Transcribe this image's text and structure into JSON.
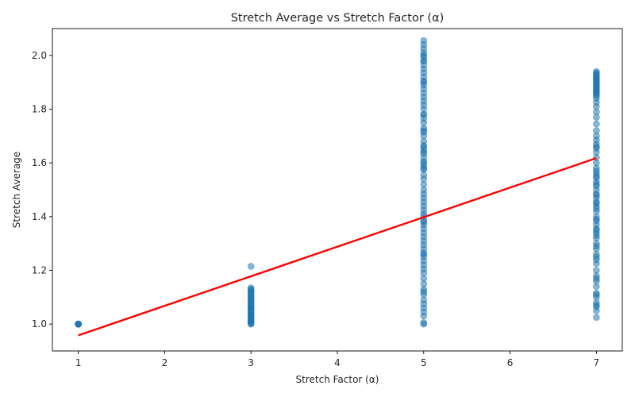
{
  "chart_data": {
    "type": "scatter",
    "title": "Stretch Average vs Stretch Factor (α)",
    "xlabel": "Stretch Factor (α)",
    "ylabel": "Stretch Average",
    "xlim": [
      0.7,
      7.3
    ],
    "ylim": [
      0.9,
      2.1
    ],
    "xticks": [
      1,
      2,
      3,
      4,
      5,
      6,
      7
    ],
    "yticks": [
      1.0,
      1.2,
      1.4,
      1.6,
      1.8,
      2.0
    ],
    "xtick_labels": [
      "1",
      "2",
      "3",
      "4",
      "5",
      "6",
      "7"
    ],
    "ytick_labels": [
      "1.0",
      "1.2",
      "1.4",
      "1.6",
      "1.8",
      "2.0"
    ],
    "grid": false,
    "point_color": "#1f77b4",
    "series": [
      {
        "x": [
          1,
          1,
          1,
          1,
          1,
          1,
          1,
          1,
          3,
          3,
          3,
          3,
          3,
          3,
          3,
          3,
          3,
          3,
          3,
          3,
          3,
          3,
          3,
          3,
          3,
          3,
          3,
          3,
          3,
          3,
          3,
          3,
          3,
          3,
          3,
          3,
          3,
          3,
          3,
          3,
          3,
          3,
          5,
          5,
          5,
          5,
          5,
          5,
          5,
          5,
          5,
          5,
          5,
          5,
          5,
          5,
          5,
          5,
          5,
          5,
          5,
          5,
          5,
          5,
          5,
          5,
          5,
          5,
          5,
          5,
          5,
          5,
          5,
          5,
          5,
          5,
          5,
          5,
          5,
          5,
          5,
          5,
          5,
          5,
          5,
          5,
          5,
          5,
          5,
          5,
          5,
          5,
          5,
          5,
          5,
          5,
          5,
          5,
          5,
          5,
          5,
          5,
          5,
          5,
          5,
          5,
          5,
          5,
          5,
          5,
          5,
          5,
          5,
          5,
          5,
          5,
          5,
          5,
          5,
          5,
          5,
          5,
          7,
          7,
          7,
          7,
          7,
          7,
          7,
          7,
          7,
          7,
          7,
          7,
          7,
          7,
          7,
          7,
          7,
          7,
          7,
          7,
          7,
          7,
          7,
          7,
          7,
          7,
          7,
          7,
          7,
          7,
          7,
          7,
          7,
          7,
          7,
          7,
          7,
          7,
          7,
          7,
          7,
          7,
          7,
          7,
          7,
          7,
          7,
          7,
          7,
          7,
          7,
          7,
          7,
          7,
          7,
          7,
          7,
          7,
          7,
          7,
          7,
          7,
          7,
          7,
          7,
          7,
          7,
          7,
          7,
          7,
          7,
          7,
          7,
          7,
          7,
          7,
          7,
          7,
          7,
          7
        ],
        "y": [
          1.0,
          1.0,
          1.0,
          1.0,
          1.0,
          1.0,
          1.0,
          1.0,
          1.0,
          1.005,
          1.01,
          1.015,
          1.02,
          1.025,
          1.03,
          1.035,
          1.04,
          1.045,
          1.05,
          1.055,
          1.06,
          1.065,
          1.07,
          1.075,
          1.08,
          1.085,
          1.09,
          1.095,
          1.1,
          1.105,
          1.11,
          1.115,
          1.12,
          1.125,
          1.13,
          1.135,
          1.002,
          1.012,
          1.022,
          1.04,
          1.06,
          1.215,
          1.005,
          1.03,
          1.045,
          1.06,
          1.075,
          1.09,
          1.11,
          1.13,
          1.15,
          1.17,
          1.19,
          1.205,
          1.22,
          1.235,
          1.25,
          1.265,
          1.28,
          1.295,
          1.31,
          1.325,
          1.34,
          1.355,
          1.37,
          1.385,
          1.4,
          1.41,
          1.425,
          1.44,
          1.455,
          1.47,
          1.485,
          1.5,
          1.52,
          1.54,
          1.555,
          1.575,
          1.59,
          1.605,
          1.62,
          1.635,
          1.65,
          1.665,
          1.68,
          1.7,
          1.715,
          1.73,
          1.75,
          1.765,
          1.78,
          1.8,
          1.815,
          1.83,
          1.845,
          1.86,
          1.875,
          1.89,
          1.905,
          1.92,
          1.935,
          1.95,
          1.965,
          1.98,
          1.995,
          2.01,
          2.025,
          2.04,
          2.055,
          1.58,
          1.6,
          1.64,
          1.66,
          1.72,
          1.78,
          1.98,
          2.0,
          1.0,
          1.12,
          1.26,
          1.38,
          1.9,
          1.025,
          1.05,
          1.065,
          1.08,
          1.1,
          1.115,
          1.14,
          1.16,
          1.18,
          1.2,
          1.225,
          1.24,
          1.26,
          1.28,
          1.3,
          1.32,
          1.34,
          1.355,
          1.37,
          1.385,
          1.4,
          1.42,
          1.44,
          1.455,
          1.47,
          1.485,
          1.5,
          1.515,
          1.53,
          1.545,
          1.56,
          1.58,
          1.6,
          1.62,
          1.64,
          1.655,
          1.67,
          1.685,
          1.7,
          1.72,
          1.745,
          1.77,
          1.79,
          1.81,
          1.825,
          1.84,
          1.85,
          1.86,
          1.87,
          1.88,
          1.89,
          1.9,
          1.91,
          1.92,
          1.93,
          1.94,
          1.855,
          1.865,
          1.875,
          1.885,
          1.895,
          1.905,
          1.915,
          1.925,
          1.935,
          1.35,
          1.45,
          1.55,
          1.25,
          1.39,
          1.48,
          1.52,
          1.66,
          1.07,
          1.11,
          1.17,
          1.29,
          1.33,
          1.43,
          1.57
        ]
      }
    ],
    "trend_line": {
      "color": "#ff0000",
      "x": [
        1,
        7
      ],
      "y": [
        0.958,
        1.618
      ]
    }
  }
}
